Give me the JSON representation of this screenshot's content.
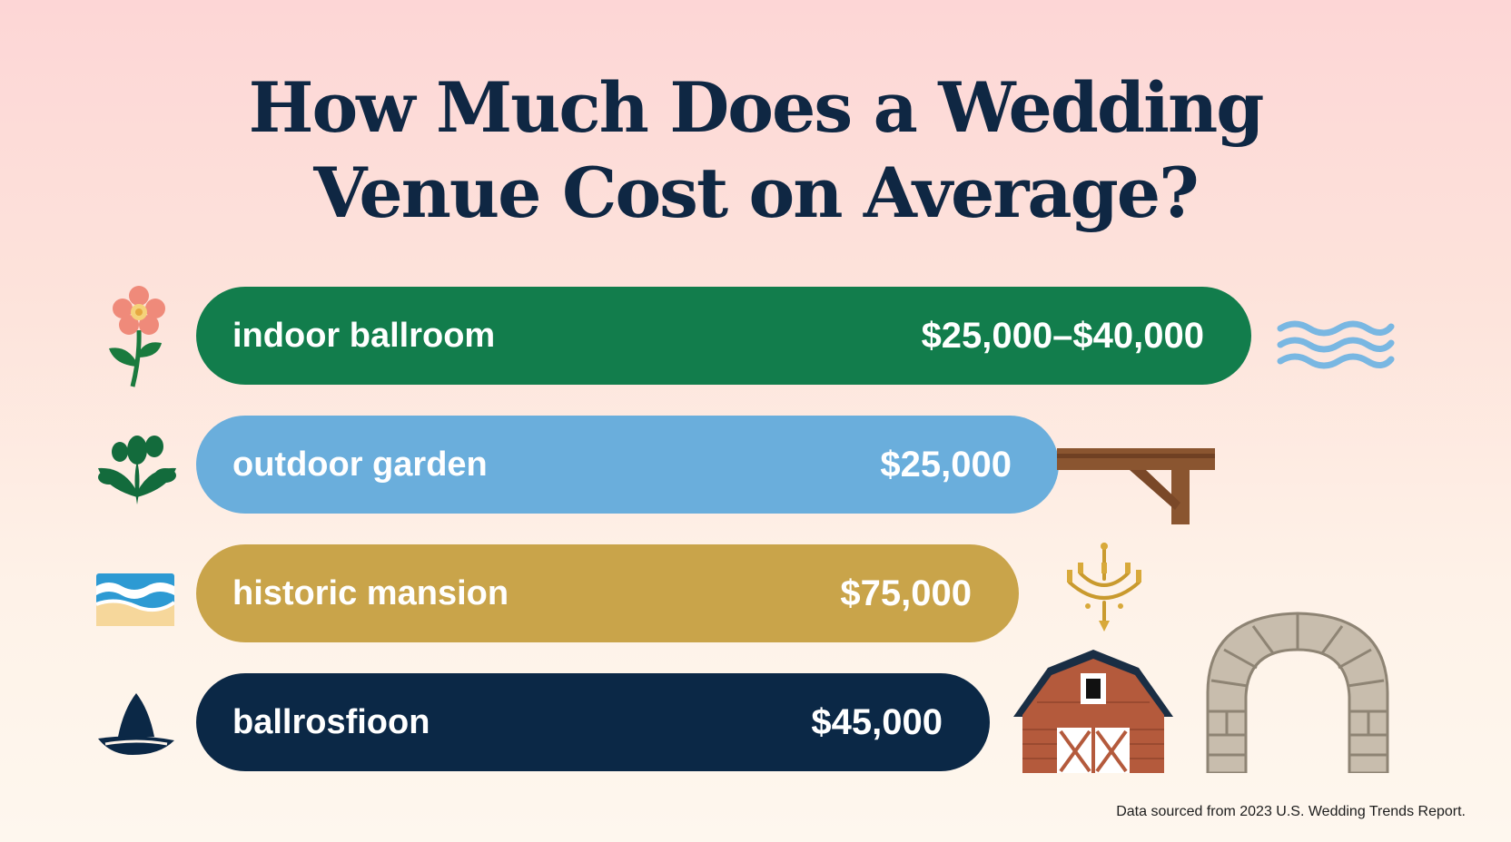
{
  "title_line1": "How Much Does a Wedding",
  "title_line2": "Venue Cost on Average?",
  "footer": "Data sourced from 2023 U.S. Wedding Trends Report.",
  "chart_data": {
    "type": "bar",
    "orientation": "horizontal",
    "categories": [
      "indoor ballroom",
      "outdoor garden",
      "historic mansion",
      "ballrosfioon"
    ],
    "value_labels": [
      "$25,000–$40,000",
      "$25,000",
      "$75,000",
      "$45,000"
    ],
    "bar_colors": [
      "#127d4c",
      "#6aaedc",
      "#c9a44a",
      "#0b2846"
    ],
    "icons": [
      "flower-icon",
      "leaf-plant-icon",
      "beach-waves-icon",
      "sailboat-icon"
    ],
    "decorations": [
      "water-waves-icon",
      "wooden-beam-icon",
      "chandelier-icon",
      "barn-icon",
      "stone-arch-icon"
    ],
    "grid": false
  }
}
